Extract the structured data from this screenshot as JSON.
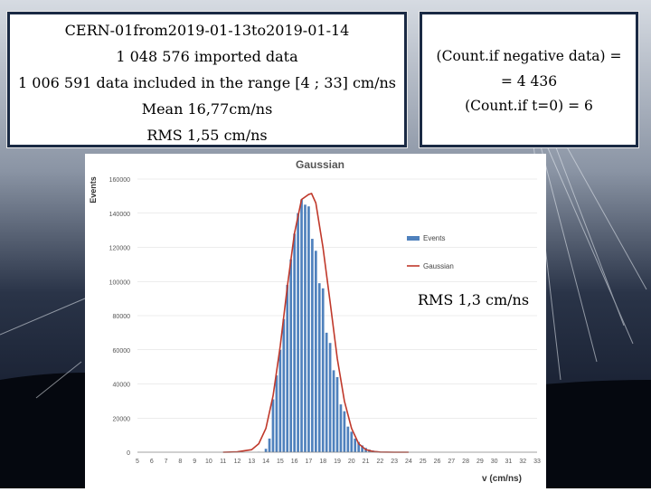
{
  "info_box": {
    "line1": "CERN-01from2019-01-13to2019-01-14",
    "line2": "1 048 576 imported data",
    "line3": "1 006 591 data included in the range [4 ; 33] cm/ns",
    "line4": "Mean 16,77cm/ns",
    "line5": "RMS 1,55 cm/ns"
  },
  "count_box": {
    "line1": "(Count.if negative data) =",
    "line2": "= 4 436",
    "line3": "(Count.if t=0) = 6"
  },
  "rms_annotation": "RMS  1,3 cm/ns",
  "colors": {
    "bar": "#4f81bd",
    "curve": "#c0392b",
    "box_border": "#1a2a44",
    "sky": "#0c1424"
  },
  "chart_data": {
    "type": "bar",
    "title": "Gaussian",
    "xlabel": "v (cm/ns)",
    "ylabel": "Events",
    "ylim": [
      0,
      160000
    ],
    "yticks": [
      0,
      20000,
      40000,
      60000,
      80000,
      100000,
      120000,
      140000,
      160000
    ],
    "xlim": [
      5,
      33
    ],
    "xticks": [
      5,
      6,
      7,
      8,
      9,
      10,
      11,
      12,
      13,
      14,
      15,
      16,
      17,
      18,
      19,
      20,
      21,
      22,
      23,
      24,
      25,
      26,
      27,
      28,
      29,
      30,
      31,
      32,
      33
    ],
    "legend": {
      "placement": "right",
      "entries": [
        "Events",
        "Gaussian"
      ]
    },
    "series": [
      {
        "name": "Events",
        "kind": "bar",
        "x": [
          13.5,
          14,
          14.25,
          14.5,
          14.75,
          15,
          15.25,
          15.5,
          15.75,
          16,
          16.25,
          16.5,
          16.75,
          17,
          17.25,
          17.5,
          17.75,
          18,
          18.25,
          18.5,
          18.75,
          19,
          19.25,
          19.5,
          19.75,
          20,
          20.25,
          20.5,
          20.75,
          21,
          21.25,
          21.5,
          21.75,
          22
        ],
        "values": [
          200,
          2000,
          8000,
          31000,
          45000,
          60000,
          78000,
          98000,
          113000,
          128000,
          140000,
          148000,
          145000,
          144000,
          125000,
          118000,
          99000,
          96000,
          70000,
          64000,
          48000,
          44000,
          28000,
          24000,
          15000,
          12000,
          8000,
          6000,
          4000,
          2500,
          1500,
          1000,
          600,
          300
        ]
      },
      {
        "name": "Gaussian",
        "kind": "line",
        "x": [
          11,
          12,
          13,
          13.5,
          14,
          14.5,
          15,
          15.5,
          16,
          16.5,
          17,
          17.2,
          17.5,
          18,
          18.5,
          19,
          19.5,
          20,
          20.5,
          21,
          21.5,
          22,
          23,
          24
        ],
        "values": [
          0,
          200,
          1500,
          5000,
          14000,
          33000,
          62000,
          97000,
          128000,
          148000,
          151000,
          151500,
          146000,
          120000,
          88000,
          55000,
          30000,
          14000,
          5000,
          1500,
          400,
          100,
          0,
          0
        ]
      }
    ]
  }
}
